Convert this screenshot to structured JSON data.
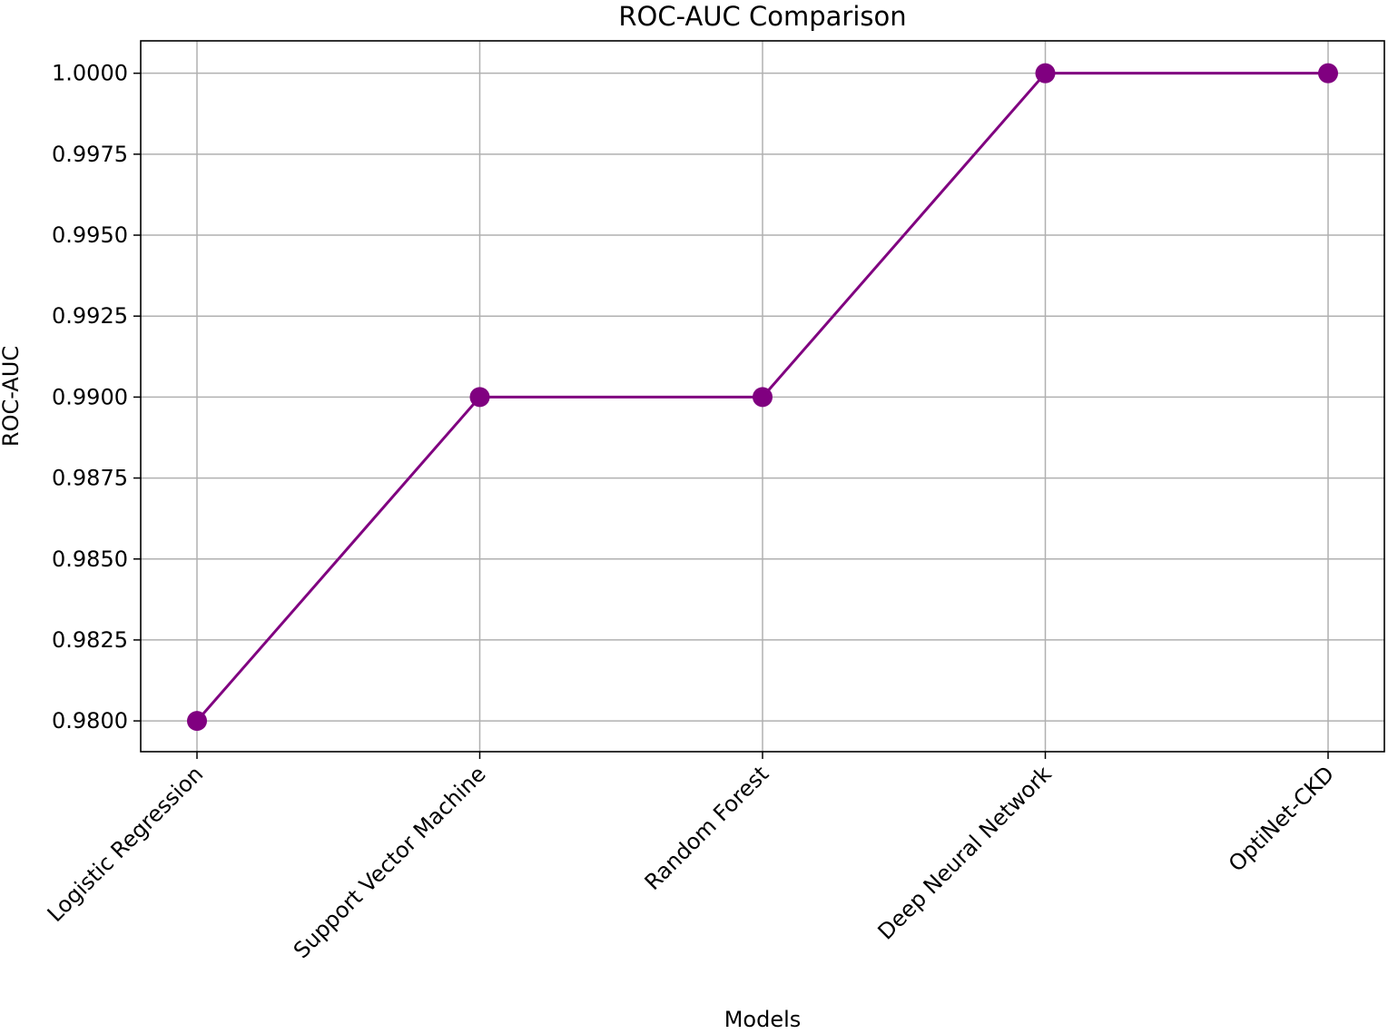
{
  "chart_data": {
    "type": "line",
    "title": "ROC-AUC Comparison",
    "xlabel": "Models",
    "ylabel": "ROC-AUC",
    "categories": [
      "Logistic Regression",
      "Support Vector Machine",
      "Random Forest",
      "Deep Neural Network",
      "OptiNet-CKD"
    ],
    "series": [
      {
        "values": [
          0.98,
          0.99,
          0.99,
          1.0,
          1.0
        ]
      }
    ],
    "ylim": [
      0.97905,
      1.001
    ],
    "yticks": [
      0.98,
      0.9825,
      0.985,
      0.9875,
      0.99,
      0.9925,
      0.995,
      0.9975,
      1.0
    ],
    "ytick_labels": [
      "0.9800",
      "0.9825",
      "0.9850",
      "0.9875",
      "0.9900",
      "0.9925",
      "0.9950",
      "0.9975",
      "1.0000"
    ],
    "grid": true,
    "legend": "none",
    "line_color": "#800080",
    "marker": "circle",
    "grid_color": "#b0b0b0",
    "xtick_rotation_deg": 45
  }
}
